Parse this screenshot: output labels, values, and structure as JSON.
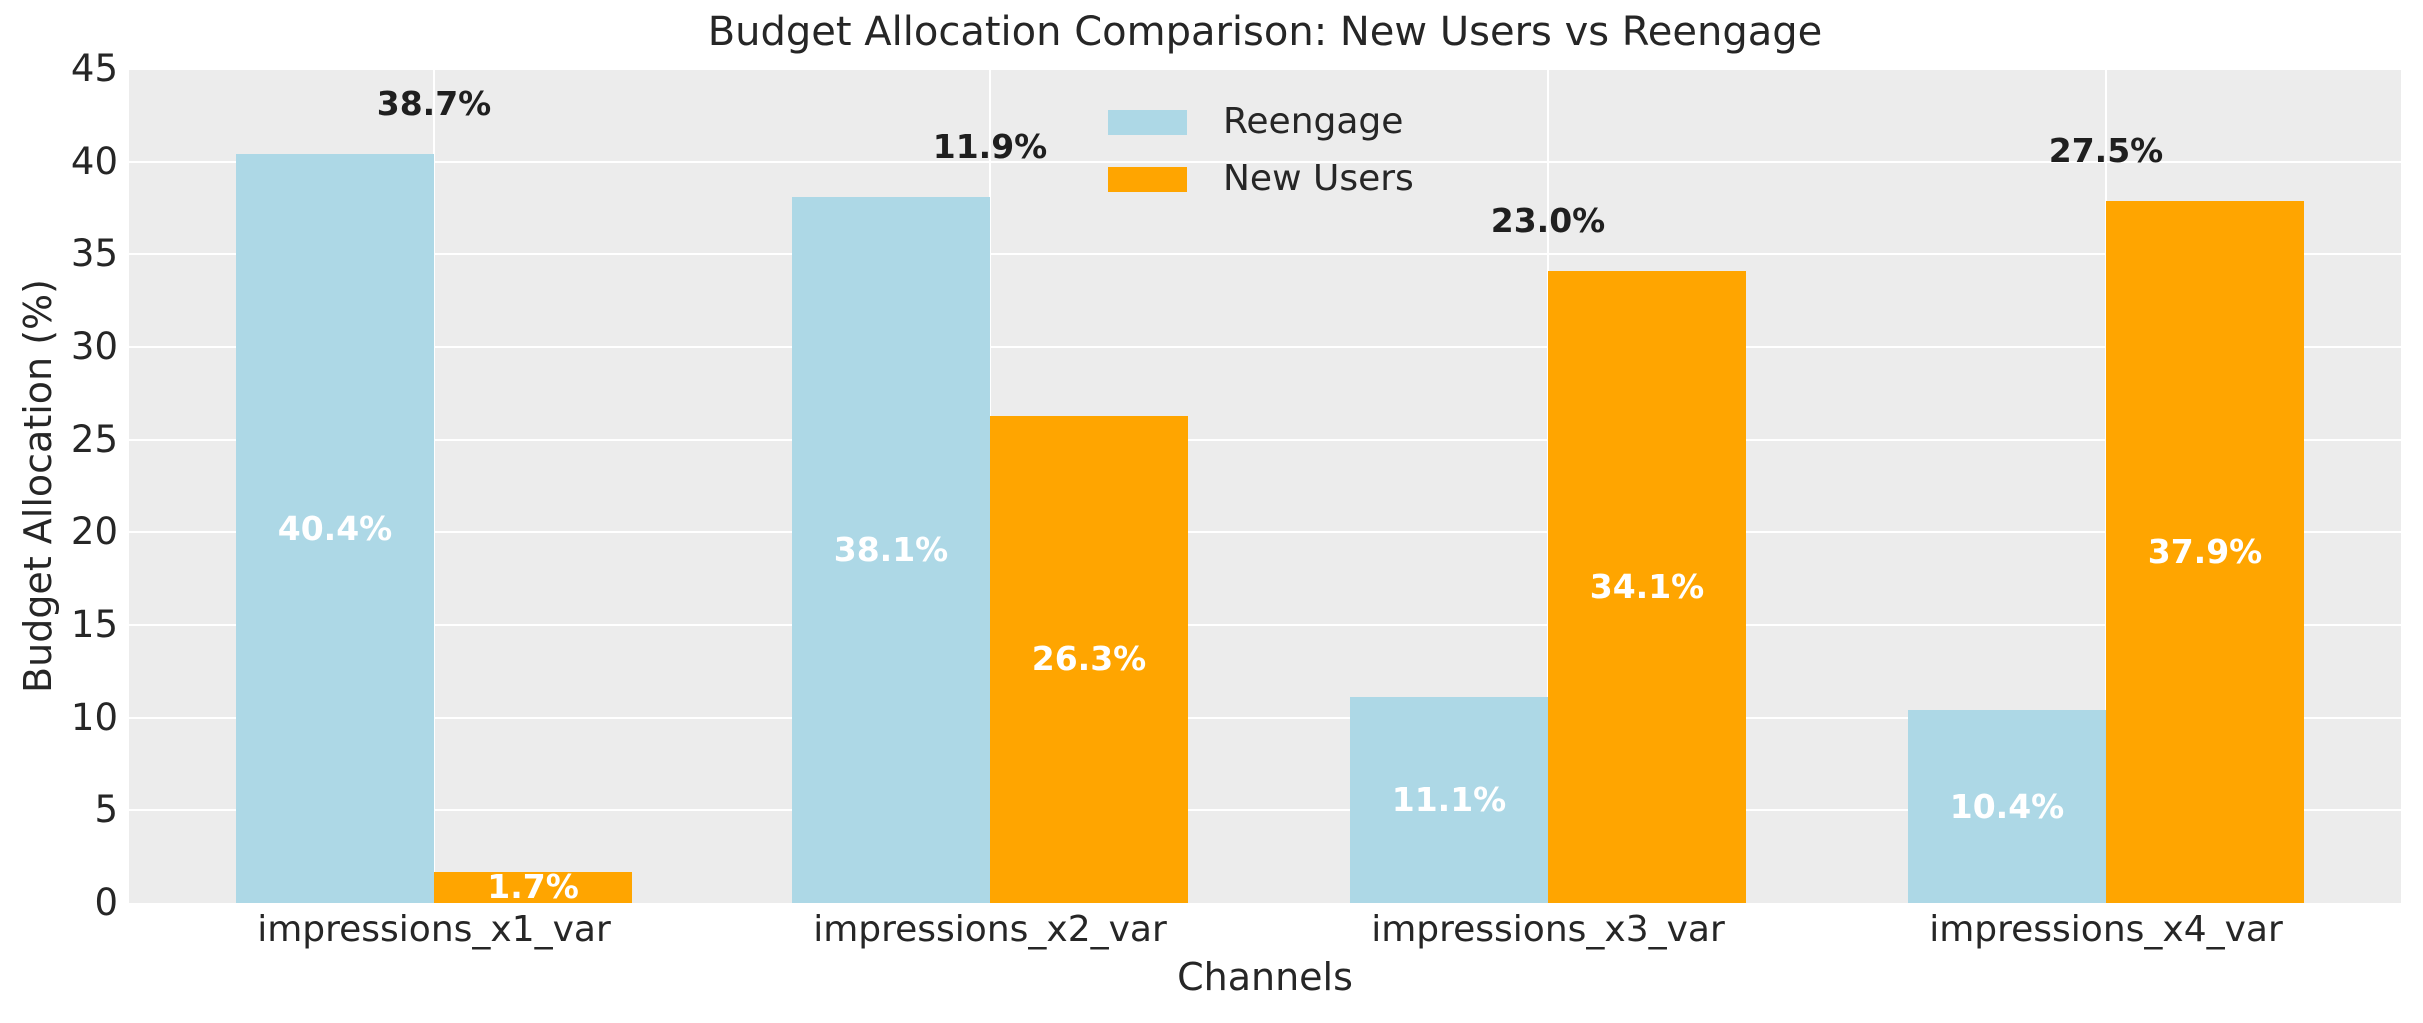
{
  "figure": {
    "background": "#ffffff",
    "plot_background": "#ececec",
    "grid_color": "#ffffff",
    "text_color": "#262626"
  },
  "chart_data": {
    "type": "bar",
    "title": "Budget Allocation Comparison: New Users vs Reengage",
    "xlabel": "Channels",
    "ylabel": "Budget Allocation (%)",
    "categories": [
      "impressions_x1_var",
      "impressions_x2_var",
      "impressions_x3_var",
      "impressions_x4_var"
    ],
    "series": [
      {
        "name": "Reengage",
        "color": "#add8e6",
        "values": [
          40.4,
          38.1,
          11.1,
          10.4
        ],
        "bar_labels": [
          "40.4%",
          "38.1%",
          "11.1%",
          "10.4%"
        ],
        "label_color": "#ffffff"
      },
      {
        "name": "New Users",
        "color": "#ffa500",
        "values": [
          1.7,
          26.3,
          34.1,
          37.9
        ],
        "bar_labels": [
          "1.7%",
          "26.3%",
          "34.1%",
          "37.9%"
        ],
        "label_color": "#ffffff"
      }
    ],
    "difference_labels": [
      "38.7%",
      "11.9%",
      "23.0%",
      "27.5%"
    ],
    "y_ticks": [
      "0",
      "5",
      "10",
      "15",
      "20",
      "25",
      "30",
      "35",
      "40",
      "45"
    ],
    "ylim": [
      0,
      45
    ],
    "grid": true,
    "legend": {
      "position": "upper center",
      "entries": [
        "Reengage",
        "New Users"
      ]
    }
  }
}
